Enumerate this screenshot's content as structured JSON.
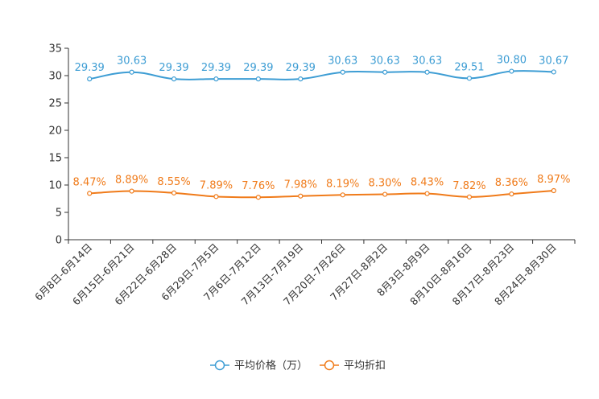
{
  "chart_data": {
    "type": "line",
    "title": "",
    "xlabel": "",
    "ylabel": "",
    "ylim": [
      0,
      35
    ],
    "yticks": [
      0,
      5,
      10,
      15,
      20,
      25,
      30,
      35
    ],
    "grid": false,
    "legend_position": "bottom-center",
    "categories": [
      "6月8日-6月14日",
      "6月15日-6月21日",
      "6月22日-6月28日",
      "6月29日-7月5日",
      "7月6日-7月12日",
      "7月13日-7月19日",
      "7月20日-7月26日",
      "7月27日-8月2日",
      "8月3日-8月9日",
      "8月10日-8月16日",
      "8月17日-8月23日",
      "8月24日-8月30日"
    ],
    "series": [
      {
        "name": "平均价格（万）",
        "color": "#3d9dd4",
        "values": [
          29.39,
          30.63,
          29.39,
          29.39,
          29.39,
          29.39,
          30.63,
          30.63,
          30.63,
          29.51,
          30.8,
          30.67
        ],
        "labels": [
          "29.39",
          "30.63",
          "29.39",
          "29.39",
          "29.39",
          "29.39",
          "30.63",
          "30.63",
          "30.63",
          "29.51",
          "30.80",
          "30.67"
        ]
      },
      {
        "name": "平均折扣",
        "color": "#f07b1a",
        "values": [
          8.47,
          8.89,
          8.55,
          7.89,
          7.76,
          7.98,
          8.19,
          8.3,
          8.43,
          7.82,
          8.36,
          8.97
        ],
        "labels": [
          "8.47%",
          "8.89%",
          "8.55%",
          "7.89%",
          "7.76%",
          "7.98%",
          "8.19%",
          "8.30%",
          "8.43%",
          "7.82%",
          "8.36%",
          "8.97%"
        ]
      }
    ]
  }
}
